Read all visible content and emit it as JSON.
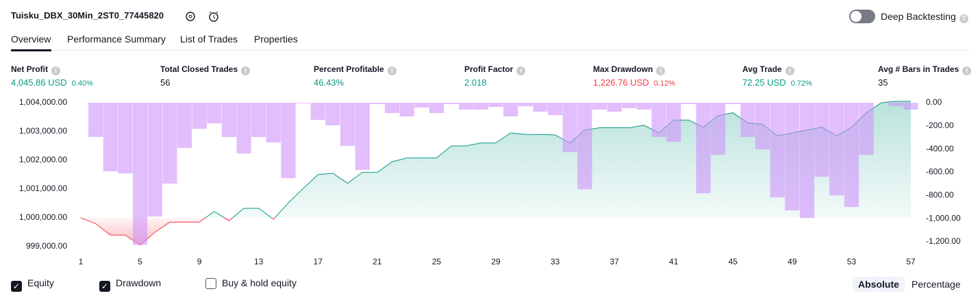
{
  "header": {
    "title": "Tuisku_DBX_30Min_2ST0_77445820",
    "deep_backtesting": "Deep Backtesting",
    "deep_backtesting_on": false
  },
  "tabs": [
    "Overview",
    "Performance Summary",
    "List of Trades",
    "Properties"
  ],
  "active_tab": 0,
  "stats": [
    {
      "label": "Net Profit",
      "value": "4,045.86 USD",
      "pct": "0.40%",
      "tone": "pos"
    },
    {
      "label": "Total Closed Trades",
      "value": "56",
      "tone": "neutral"
    },
    {
      "label": "Percent Profitable",
      "value": "46.43%",
      "tone": "pos"
    },
    {
      "label": "Profit Factor",
      "value": "2.018",
      "tone": "pos"
    },
    {
      "label": "Max Drawdown",
      "value": "1,226.76 USD",
      "pct": "0.12%",
      "tone": "neg"
    },
    {
      "label": "Avg Trade",
      "value": "72.25 USD",
      "pct": "0.72%",
      "tone": "pos"
    },
    {
      "label": "Avg # Bars in Trades",
      "value": "35",
      "tone": "neutral"
    }
  ],
  "chart_data": {
    "type": "line",
    "x": [
      1,
      2,
      3,
      4,
      5,
      6,
      7,
      8,
      9,
      10,
      11,
      12,
      13,
      14,
      15,
      16,
      17,
      18,
      19,
      20,
      21,
      22,
      23,
      24,
      25,
      26,
      27,
      28,
      29,
      30,
      31,
      32,
      33,
      34,
      35,
      36,
      37,
      38,
      39,
      40,
      41,
      42,
      43,
      44,
      45,
      46,
      47,
      48,
      49,
      50,
      51,
      52,
      53,
      54,
      55,
      56,
      57
    ],
    "xlim": [
      1,
      57
    ],
    "xticks": [
      1,
      5,
      9,
      13,
      17,
      21,
      25,
      29,
      33,
      37,
      41,
      45,
      49,
      53,
      57
    ],
    "ylim": [
      999000,
      1004000
    ],
    "yticks": [
      {
        "value": 999000,
        "label": "999,000.00"
      },
      {
        "value": 1000000,
        "label": "1,000,000.00"
      },
      {
        "value": 1001000,
        "label": "1,001,000.00"
      },
      {
        "value": 1002000,
        "label": "1,002,000.00"
      },
      {
        "value": 1003000,
        "label": "1,003,000.00"
      },
      {
        "value": 1004000,
        "label": "1,004,000.00"
      }
    ],
    "y2lim": [
      -1200,
      0
    ],
    "y2ticks": [
      {
        "value": -1200,
        "label": "-1,200.00"
      },
      {
        "value": -1000,
        "label": "-1,000.00"
      },
      {
        "value": -800,
        "label": "-800.00"
      },
      {
        "value": -600,
        "label": "-600.00"
      },
      {
        "value": -400,
        "label": "-400.00"
      },
      {
        "value": -200,
        "label": "-200.00"
      },
      {
        "value": 0,
        "label": "0.00"
      }
    ],
    "baseline": 1000000,
    "series": [
      {
        "name": "Equity",
        "kind": "area",
        "color": "#089981",
        "negative_color": "#f23645",
        "checked": true,
        "values": [
          1000000,
          999800,
          999400,
          999400,
          999050,
          999500,
          999850,
          999850,
          999850,
          1000220,
          999900,
          1000330,
          1000330,
          999950,
          1000520,
          1001020,
          1001500,
          1001550,
          1001200,
          1001580,
          1001580,
          1001950,
          1002080,
          1002080,
          1002080,
          1002500,
          1002500,
          1002600,
          1002600,
          1002950,
          1002900,
          1002900,
          1002880,
          1002600,
          1003050,
          1003130,
          1003130,
          1003130,
          1003220,
          1002950,
          1003400,
          1003400,
          1003150,
          1003550,
          1003650,
          1003300,
          1003250,
          1002850,
          1002950,
          1003050,
          1003150,
          1002850,
          1003150,
          1003650,
          1004000,
          1004050,
          1004050
        ]
      },
      {
        "name": "Drawdown",
        "kind": "bar",
        "axis": "y2",
        "color": "#ce93fb",
        "checked": true,
        "values": [
          0,
          -295,
          -592,
          -610,
          -1227,
          -982,
          -698,
          -390,
          -225,
          -178,
          -296,
          -438,
          -296,
          -343,
          -651,
          -5,
          -148,
          -195,
          -373,
          -580,
          -12,
          -89,
          -118,
          -41,
          -89,
          -12,
          -59,
          -59,
          -36,
          -118,
          -30,
          -77,
          -107,
          -426,
          -746,
          -59,
          -77,
          -47,
          -59,
          -296,
          -337,
          -12,
          -781,
          -450,
          -12,
          -296,
          -402,
          -817,
          -929,
          -994,
          -639,
          -799,
          -899,
          -450,
          0,
          -30,
          -59
        ]
      }
    ]
  },
  "buy_hold": {
    "label": "Buy & hold equity",
    "checked": false
  },
  "modes": [
    "Absolute",
    "Percentage"
  ],
  "active_mode": 0
}
